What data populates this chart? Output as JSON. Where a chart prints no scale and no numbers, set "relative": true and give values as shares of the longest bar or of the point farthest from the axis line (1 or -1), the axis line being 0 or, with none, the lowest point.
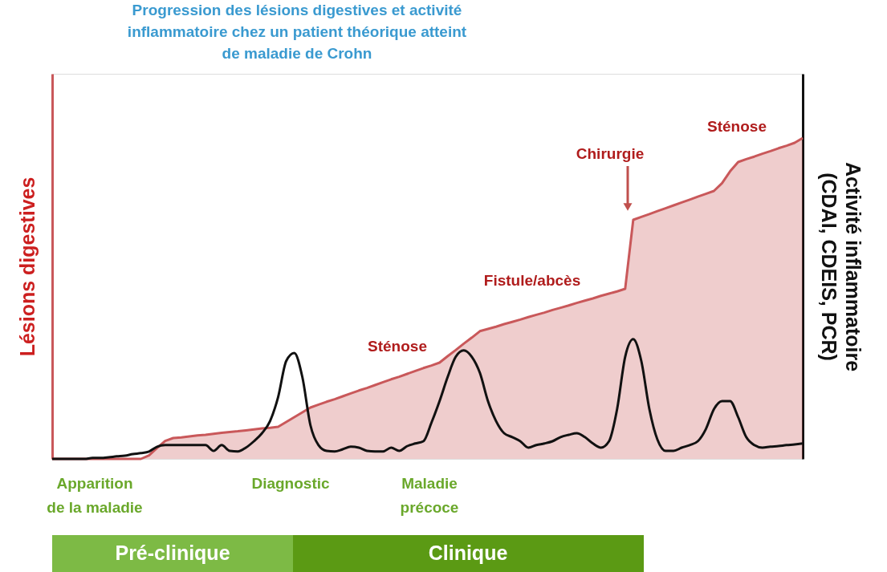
{
  "chart_data": {
    "type": "area",
    "relative": true,
    "title": "Progression des lésions digestives et activité inflammatoire chez un patient théorique atteint de maladie de Crohn",
    "ylabel": "Lésions digestives",
    "y2label": "Activité inflammatoire (CDAI, CDEIS, PCR)",
    "categories": [
      null,
      null,
      null,
      null,
      null,
      null,
      null,
      null,
      null,
      null,
      null,
      null,
      null,
      null,
      null,
      null,
      null,
      null,
      null,
      null,
      null,
      null,
      null,
      null,
      null,
      null,
      null,
      null,
      null,
      null,
      null,
      null,
      null,
      null,
      null,
      null,
      null,
      null,
      null,
      null,
      null,
      null,
      null,
      null,
      null,
      null,
      null,
      null,
      null,
      null,
      null,
      null,
      null,
      null,
      null,
      null,
      null,
      null,
      null,
      null,
      null,
      null,
      null,
      null,
      null,
      null,
      null,
      null,
      null,
      null,
      null,
      null,
      null,
      null,
      null,
      null,
      null,
      null,
      null,
      null,
      null,
      null,
      null,
      null,
      null,
      null,
      null,
      null,
      null,
      null,
      null,
      null,
      null,
      null
    ],
    "series": [
      {
        "color": "#c9585a",
        "values": [
          0,
          0,
          0,
          0,
          0,
          0,
          0,
          0,
          0,
          0,
          0,
          0,
          0.011,
          0.034,
          0.056,
          0.065,
          0.067,
          0.07,
          0.073,
          0.075,
          0.078,
          0.081,
          0.084,
          0.086,
          0.089,
          0.092,
          0.095,
          0.097,
          0.1,
          0.115,
          0.13,
          0.145,
          0.16,
          0.169,
          0.178,
          0.186,
          0.195,
          0.204,
          0.213,
          0.221,
          0.23,
          0.239,
          0.248,
          0.256,
          0.265,
          0.274,
          0.283,
          0.291,
          0.3,
          0.32,
          0.339,
          0.359,
          0.378,
          0.398,
          0.405,
          0.412,
          0.42,
          0.427,
          0.434,
          0.442,
          0.449,
          0.456,
          0.464,
          0.471,
          0.478,
          0.486,
          0.493,
          0.5,
          0.508,
          0.515,
          0.522,
          0.53,
          0.745,
          0.754,
          0.763,
          0.772,
          0.781,
          0.79,
          0.799,
          0.808,
          0.817,
          0.826,
          0.835,
          0.859,
          0.896,
          0.925,
          0.934,
          0.942,
          0.951,
          0.959,
          0.968,
          0.976,
          0.985,
          1
        ]
      },
      {
        "type": "line",
        "color": "#111111",
        "values": [
          0,
          0,
          0,
          0,
          0,
          0.003,
          0.003,
          0.005,
          0.008,
          0.01,
          0.015,
          0.018,
          0.023,
          0.038,
          0.043,
          0.043,
          0.043,
          0.043,
          0.043,
          0.043,
          0.025,
          0.043,
          0.025,
          0.023,
          0.035,
          0.055,
          0.08,
          0.118,
          0.193,
          0.305,
          0.33,
          0.255,
          0.105,
          0.043,
          0.025,
          0.023,
          0.03,
          0.038,
          0.035,
          0.025,
          0.023,
          0.023,
          0.035,
          0.025,
          0.04,
          0.048,
          0.055,
          0.113,
          0.18,
          0.255,
          0.318,
          0.338,
          0.318,
          0.268,
          0.18,
          0.118,
          0.08,
          0.068,
          0.055,
          0.035,
          0.043,
          0.048,
          0.055,
          0.068,
          0.075,
          0.08,
          0.068,
          0.048,
          0.035,
          0.055,
          0.155,
          0.318,
          0.373,
          0.305,
          0.155,
          0.06,
          0.025,
          0.025,
          0.035,
          0.043,
          0.055,
          0.093,
          0.155,
          0.18,
          0.18,
          0.13,
          0.068,
          0.043,
          0.035,
          0.038,
          0.04,
          0.043,
          0.045,
          0.048
        ]
      }
    ],
    "annotations": [
      "Sténose",
      "Fistule/abcès",
      "Chirurgie",
      "Sténose",
      "Apparition de la maladie",
      "Diagnostic",
      "Maladie précoce",
      "Pré-clinique",
      "Clinique"
    ]
  }
}
